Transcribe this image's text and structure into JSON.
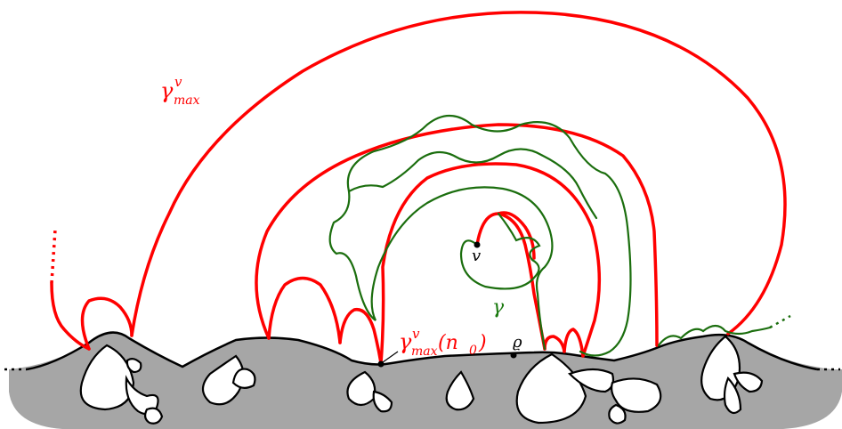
{
  "labels": {
    "gamma_max_main": "γ",
    "gamma_max_main_sup": "v",
    "gamma_max_main_sub": "max",
    "gamma_max_n0": "γ",
    "gamma_max_n0_sup": "v",
    "gamma_max_n0_sub": "max",
    "gamma_max_n0_arg": "(n",
    "gamma_max_n0_arg_sub": "0",
    "gamma_max_n0_close": ")",
    "gamma_green": "γ",
    "vertex_v": "v",
    "root_rho": "ϱ"
  },
  "colors": {
    "red_curve": "#ff0000",
    "green_curve": "#1b6e0e",
    "ground_fill": "#a6a6a6",
    "outline": "#000000"
  }
}
